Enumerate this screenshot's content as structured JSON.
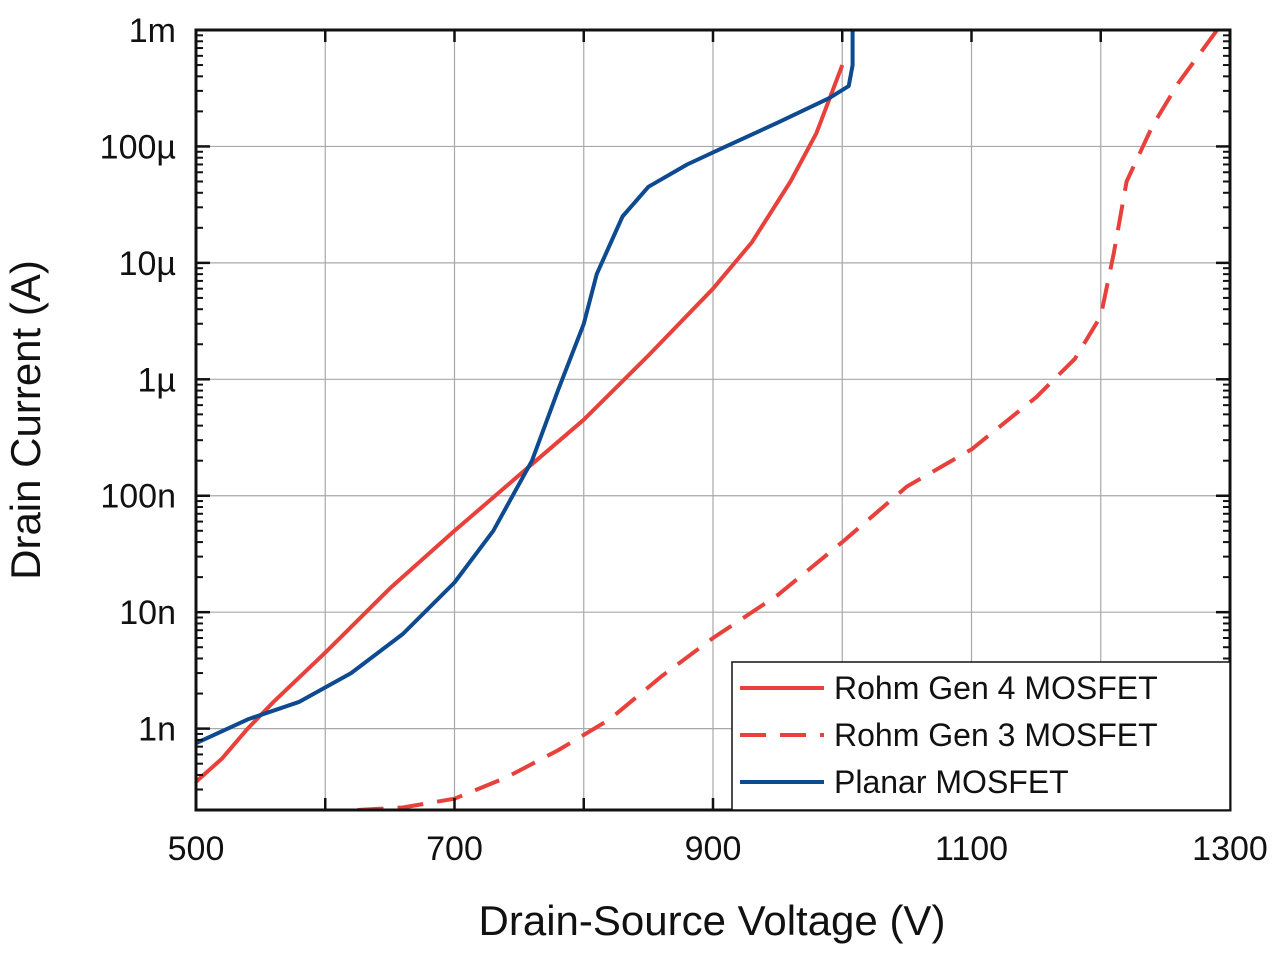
{
  "chart_data": {
    "type": "line",
    "xlabel": "Drain-Source Voltage (V)",
    "ylabel": "Drain Current (A)",
    "xlim": [
      500,
      1300
    ],
    "ylim": [
      2e-10,
      0.001
    ],
    "yscale": "log",
    "grid": true,
    "legend_position": "bottom-right",
    "x_ticks": [
      {
        "value": 500,
        "label": "500"
      },
      {
        "value": 700,
        "label": "700"
      },
      {
        "value": 900,
        "label": "900"
      },
      {
        "value": 1100,
        "label": "1100"
      },
      {
        "value": 1300,
        "label": "1300"
      }
    ],
    "x_grid": [
      500,
      600,
      700,
      800,
      900,
      1000,
      1100,
      1200,
      1300
    ],
    "y_ticks": [
      {
        "value": 1e-09,
        "label": "1n"
      },
      {
        "value": 1e-08,
        "label": "10n"
      },
      {
        "value": 1e-07,
        "label": "100n"
      },
      {
        "value": 1e-06,
        "label": "1µ"
      },
      {
        "value": 1e-05,
        "label": "10µ"
      },
      {
        "value": 0.0001,
        "label": "100µ"
      },
      {
        "value": 0.001,
        "label": "1m"
      }
    ],
    "series": [
      {
        "name": "Rohm Gen 4 MOSFET",
        "color": "#e8413c",
        "dash": "solid",
        "x": [
          500,
          520,
          540,
          560,
          600,
          650,
          700,
          750,
          800,
          850,
          900,
          930,
          960,
          980,
          1000
        ],
        "y": [
          3.5e-10,
          5.5e-10,
          1e-09,
          1.7e-09,
          4.5e-09,
          1.6e-08,
          5e-08,
          1.5e-07,
          4.5e-07,
          1.6e-06,
          6e-06,
          1.5e-05,
          5e-05,
          0.00013,
          0.0005
        ]
      },
      {
        "name": "Rohm Gen 3 MOSFET",
        "color": "#e8413c",
        "dash": "dashed",
        "x": [
          625,
          660,
          700,
          740,
          780,
          820,
          860,
          900,
          950,
          1000,
          1050,
          1100,
          1150,
          1180,
          1200,
          1210,
          1220,
          1240,
          1260,
          1290
        ],
        "y": [
          2e-10,
          2.1e-10,
          2.5e-10,
          3.8e-10,
          6.5e-10,
          1.2e-09,
          2.8e-09,
          6e-09,
          1.4e-08,
          4e-08,
          1.2e-07,
          2.5e-07,
          7e-07,
          1.5e-06,
          3.5e-06,
          1.2e-05,
          5e-05,
          0.00015,
          0.00035,
          0.001
        ]
      },
      {
        "name": "Planar MOSFET",
        "color": "#0d4a8f",
        "dash": "solid",
        "x": [
          500,
          540,
          580,
          620,
          660,
          700,
          730,
          760,
          780,
          800,
          810,
          830,
          850,
          880,
          910,
          950,
          990,
          1005,
          1008,
          1008
        ],
        "y": [
          7.5e-10,
          1.2e-09,
          1.7e-09,
          3e-09,
          6.5e-09,
          1.8e-08,
          5e-08,
          2e-07,
          8e-07,
          3e-06,
          8e-06,
          2.5e-05,
          4.5e-05,
          7e-05,
          0.0001,
          0.00016,
          0.00026,
          0.00033,
          0.0005,
          0.001
        ]
      }
    ]
  }
}
